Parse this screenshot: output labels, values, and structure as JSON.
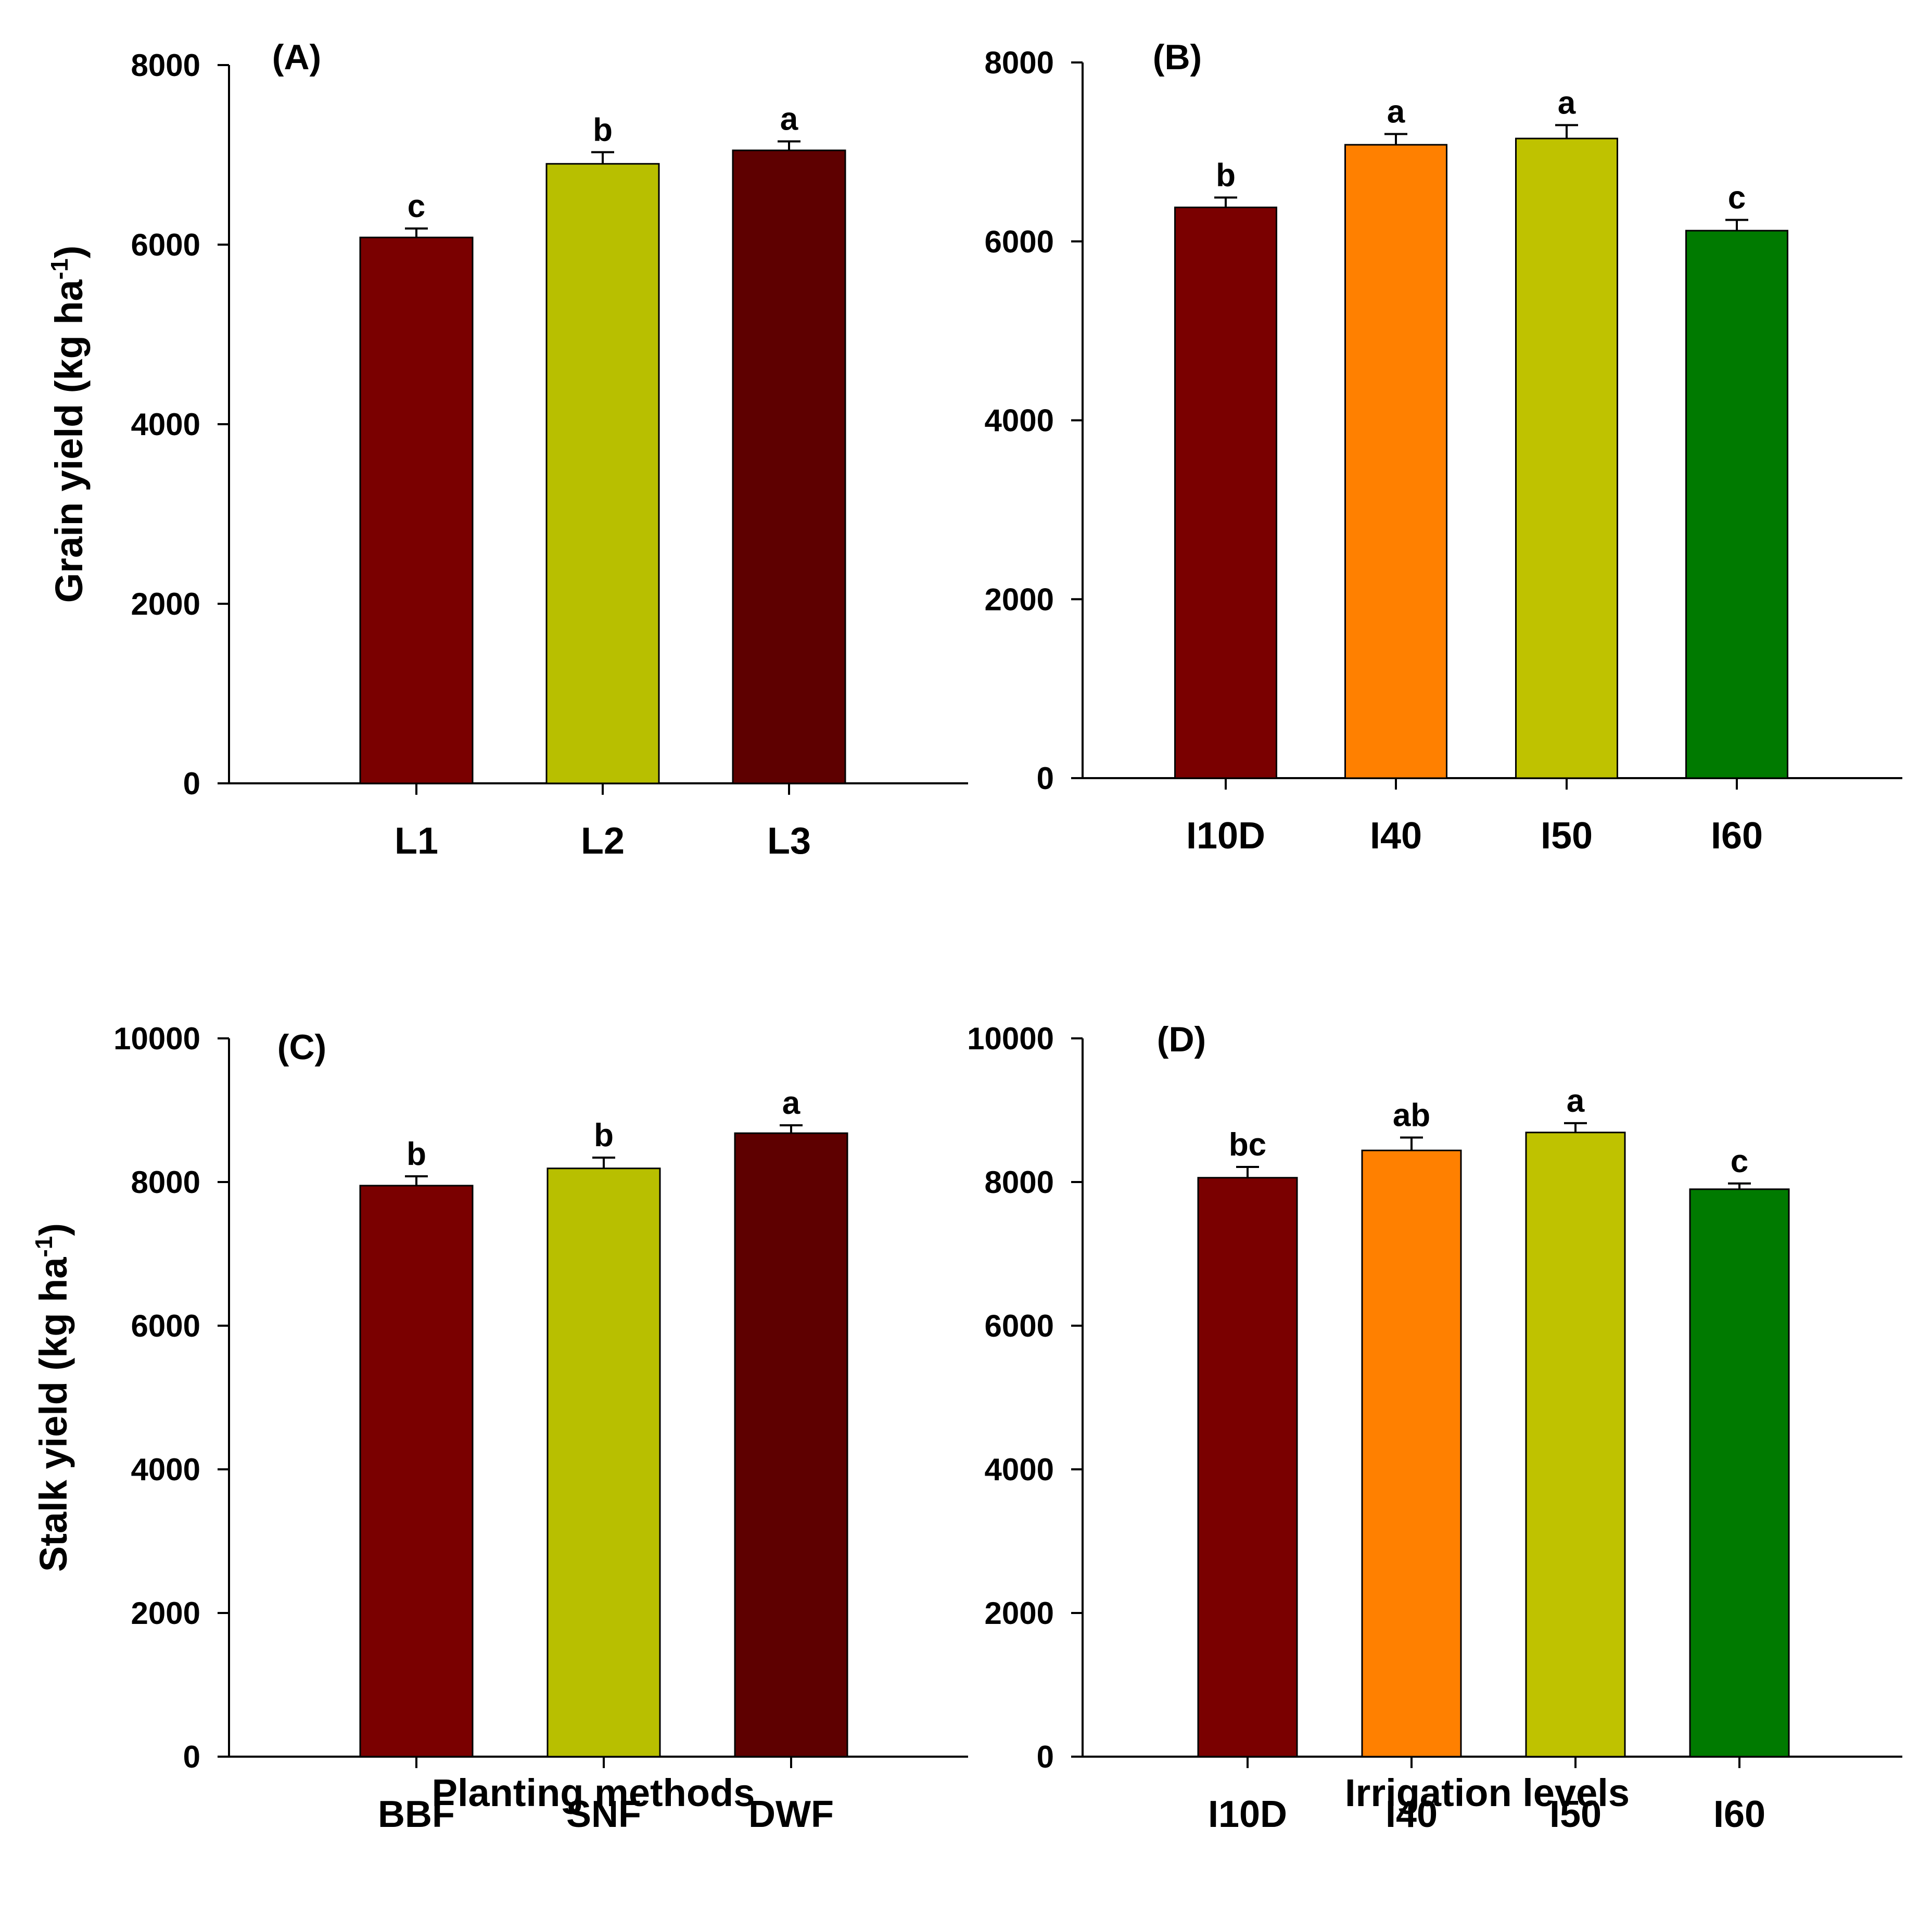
{
  "chart_data": [
    {
      "id": "A",
      "type": "bar",
      "panel_label": "(A)",
      "categories": [
        "L1",
        "L2",
        "L3"
      ],
      "values": [
        6080,
        6900,
        7050
      ],
      "errors": [
        100,
        130,
        100
      ],
      "significance": [
        "c",
        "b",
        "a"
      ],
      "colors": [
        "#7a0000",
        "#b8bf00",
        "#5e0000"
      ],
      "ylim": [
        0,
        8000
      ],
      "yticks": [
        0,
        2000,
        4000,
        6000,
        8000
      ],
      "ylabel_main": "Grain yield (kg ha",
      "ylabel_sup": "-1",
      "ylabel_end": ")",
      "xlabel": ""
    },
    {
      "id": "B",
      "type": "bar",
      "panel_label": "(B)",
      "categories": [
        "I10D",
        "I40",
        "I50",
        "I60"
      ],
      "values": [
        6380,
        7080,
        7150,
        6120
      ],
      "errors": [
        110,
        120,
        150,
        120
      ],
      "significance": [
        "b",
        "a",
        "a",
        "c"
      ],
      "colors": [
        "#7a0000",
        "#ff8000",
        "#bfc200",
        "#007a00"
      ],
      "ylim": [
        0,
        8000
      ],
      "yticks": [
        0,
        2000,
        4000,
        6000,
        8000
      ],
      "ylabel_main": "",
      "ylabel_sup": "",
      "ylabel_end": "",
      "xlabel": ""
    },
    {
      "id": "C",
      "type": "bar",
      "panel_label": "(C)",
      "categories": [
        "BBF",
        "SNF",
        "DWF"
      ],
      "values": [
        7950,
        8190,
        8680
      ],
      "errors": [
        130,
        150,
        110
      ],
      "significance": [
        "b",
        "b",
        "a"
      ],
      "colors": [
        "#7a0000",
        "#b8bf00",
        "#5e0000"
      ],
      "ylim": [
        0,
        10000
      ],
      "yticks": [
        0,
        2000,
        4000,
        6000,
        8000,
        10000
      ],
      "ylabel_main": "Stalk yield (kg ha",
      "ylabel_sup": "-1",
      "ylabel_end": ")",
      "xlabel": "Planting methods"
    },
    {
      "id": "D",
      "type": "bar",
      "panel_label": "(D)",
      "categories": [
        "I10D",
        "I40",
        "I50",
        "I60"
      ],
      "values": [
        8060,
        8440,
        8690,
        7900
      ],
      "errors": [
        150,
        180,
        130,
        80
      ],
      "significance": [
        "bc",
        "ab",
        "a",
        "c"
      ],
      "colors": [
        "#7a0000",
        "#ff8000",
        "#bfc200",
        "#007a00"
      ],
      "ylim": [
        0,
        10000
      ],
      "yticks": [
        0,
        2000,
        4000,
        6000,
        8000,
        10000
      ],
      "ylabel_main": "",
      "ylabel_sup": "",
      "ylabel_end": "",
      "xlabel": "Irrigation levels"
    }
  ]
}
